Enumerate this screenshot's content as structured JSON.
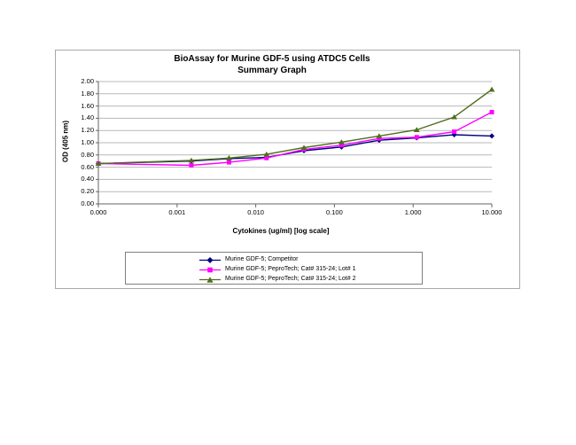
{
  "page": {
    "background": "#ffffff",
    "frame_border_color": "#a9a9a9"
  },
  "chart": {
    "title_line1": "BioAssay for Murine GDF-5 using ATDC5 Cells",
    "title_line2": "Summary Graph",
    "y_axis_title": "OD (405 nm)",
    "x_axis_title": "Cytokines (ug/ml) [log scale]"
  },
  "chart_data": {
    "type": "line",
    "x_scale": "log",
    "title": "BioAssay for Murine GDF-5 using ATDC5 Cells — Summary Graph",
    "xlabel": "Cytokines (ug/ml) [log scale]",
    "ylabel": "OD (405 nm)",
    "ylim": [
      0.0,
      2.0
    ],
    "y_tick_step": 0.2,
    "grid": true,
    "legend_position": "bottom-box",
    "x_note": "leftmost point is the 0 control plotted at the axis minimum labeled 0.000; ~1:3 serial dilution series",
    "x": [
      0.0001,
      0.00152,
      0.00457,
      0.0137,
      0.041,
      0.123,
      0.37,
      1.11,
      3.33,
      10
    ],
    "y_ticks": [
      "2.00",
      "1.80",
      "1.60",
      "1.40",
      "1.20",
      "1.00",
      "0.80",
      "0.60",
      "0.40",
      "0.20",
      "0.00"
    ],
    "x_ticks": [
      {
        "label": "0.000",
        "value": 0.0001
      },
      {
        "label": "0.001",
        "value": 0.001
      },
      {
        "label": "0.010",
        "value": 0.01
      },
      {
        "label": "0.100",
        "value": 0.1
      },
      {
        "label": "1.000",
        "value": 1
      },
      {
        "label": "10.000",
        "value": 10
      }
    ],
    "series": [
      {
        "name": "Murine GDF-5; Competitor",
        "color": "#000080",
        "marker": "diamond",
        "values": [
          0.66,
          0.7,
          0.74,
          0.76,
          0.87,
          0.93,
          1.04,
          1.08,
          1.13,
          1.11
        ]
      },
      {
        "name": "Murine GDF-5; PeproTech; Cat# 315-24; Lot# 1",
        "color": "#FF00FF",
        "marker": "square",
        "values": [
          0.66,
          0.63,
          0.68,
          0.75,
          0.89,
          0.96,
          1.07,
          1.09,
          1.18,
          1.5
        ]
      },
      {
        "name": "Murine GDF-5; PeproTech; Cat# 315-24; Lot# 2",
        "color": "#4F6E1E",
        "marker": "triangle",
        "values": [
          0.66,
          0.71,
          0.75,
          0.81,
          0.92,
          1.01,
          1.11,
          1.21,
          1.42,
          1.87
        ]
      }
    ],
    "axis_color": "#666666",
    "gridline_color": "#b8b8b8"
  }
}
